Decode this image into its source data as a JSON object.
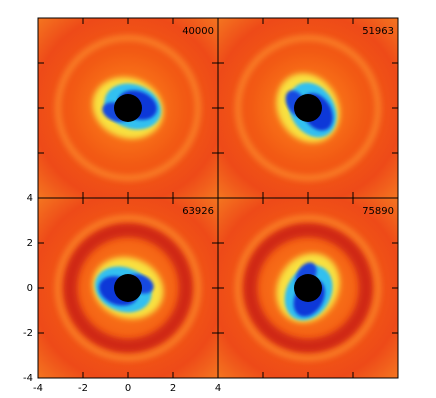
{
  "chart_data": {
    "type": "image-grid",
    "labels": [
      40000,
      51963,
      63926,
      75890
    ],
    "xlim": [
      -4,
      4
    ],
    "ylim": [
      -4,
      4
    ],
    "xticks": [
      -4,
      -2,
      0,
      2,
      4
    ],
    "yticks": [
      -4,
      -2,
      0,
      2,
      4
    ]
  }
}
